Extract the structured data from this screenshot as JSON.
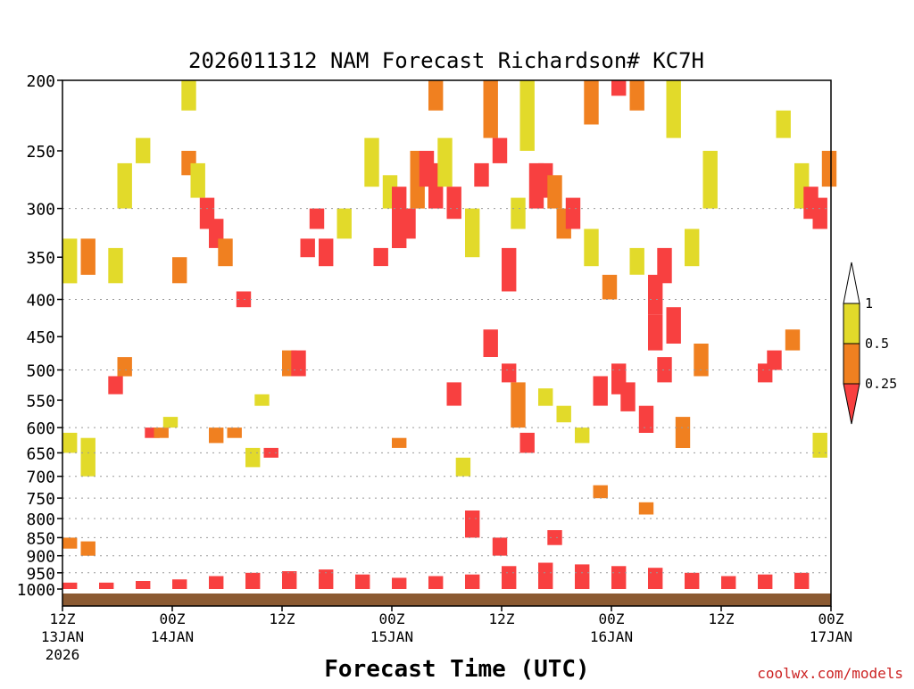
{
  "chart_data": {
    "type": "heatmap",
    "title": "2026011312 NAM Forecast Richardson# KC7H",
    "xlabel": "Forecast Time (UTC)",
    "ylabel": "",
    "credit": "coolwx.com/models",
    "x_range_hours": [
      0,
      84
    ],
    "y_range_hpa": [
      1000,
      200
    ],
    "x_ticks": [
      {
        "hour": 0,
        "time": "12Z",
        "date": "13JAN",
        "year": "2026"
      },
      {
        "hour": 12,
        "time": "00Z",
        "date": "14JAN",
        "year": ""
      },
      {
        "hour": 24,
        "time": "12Z",
        "date": "",
        "year": ""
      },
      {
        "hour": 36,
        "time": "00Z",
        "date": "15JAN",
        "year": ""
      },
      {
        "hour": 48,
        "time": "12Z",
        "date": "",
        "year": ""
      },
      {
        "hour": 60,
        "time": "00Z",
        "date": "16JAN",
        "year": ""
      },
      {
        "hour": 72,
        "time": "12Z",
        "date": "",
        "year": ""
      },
      {
        "hour": 84,
        "time": "00Z",
        "date": "17JAN",
        "year": ""
      }
    ],
    "y_ticks": [
      "200",
      "250",
      "300",
      "350",
      "400",
      "450",
      "500",
      "550",
      "600",
      "650",
      "700",
      "750",
      "800",
      "850",
      "900",
      "950",
      "1000"
    ],
    "gridlines_hpa": [
      300,
      400,
      500,
      600,
      650,
      700,
      750,
      800,
      850,
      900,
      950
    ],
    "legend": {
      "placement": "right",
      "labels": [
        "1",
        "0.5",
        "0.25"
      ],
      "bins": [
        {
          "range": "> 1",
          "color": "#ffffff"
        },
        {
          "range": "0.5 - 1",
          "color": "#e2da2a"
        },
        {
          "range": "0.25 - 0.5",
          "color": "#f08020"
        },
        {
          "range": "< 0.25",
          "color": "#f84040"
        }
      ]
    },
    "surface_color": "#8b5a32",
    "colors": {
      "low": "#f84040",
      "mid": "#f08020",
      "high": "#e2da2a"
    },
    "cells": [
      {
        "h": 0,
        "p": [
          1000,
          980
        ],
        "c": "low"
      },
      {
        "h": 4,
        "p": [
          1000,
          980
        ],
        "c": "low"
      },
      {
        "h": 8,
        "p": [
          1000,
          975
        ],
        "c": "low"
      },
      {
        "h": 12,
        "p": [
          1000,
          970
        ],
        "c": "low"
      },
      {
        "h": 16,
        "p": [
          1000,
          960
        ],
        "c": "low"
      },
      {
        "h": 20,
        "p": [
          1000,
          950
        ],
        "c": "low"
      },
      {
        "h": 24,
        "p": [
          1000,
          945
        ],
        "c": "low"
      },
      {
        "h": 28,
        "p": [
          1000,
          940
        ],
        "c": "low"
      },
      {
        "h": 32,
        "p": [
          1000,
          955
        ],
        "c": "low"
      },
      {
        "h": 36,
        "p": [
          1000,
          965
        ],
        "c": "low"
      },
      {
        "h": 40,
        "p": [
          1000,
          960
        ],
        "c": "low"
      },
      {
        "h": 44,
        "p": [
          1000,
          955
        ],
        "c": "low"
      },
      {
        "h": 48,
        "p": [
          1000,
          930
        ],
        "c": "low"
      },
      {
        "h": 52,
        "p": [
          1000,
          920
        ],
        "c": "low"
      },
      {
        "h": 56,
        "p": [
          1000,
          925
        ],
        "c": "low"
      },
      {
        "h": 60,
        "p": [
          1000,
          930
        ],
        "c": "low"
      },
      {
        "h": 64,
        "p": [
          1000,
          935
        ],
        "c": "low"
      },
      {
        "h": 68,
        "p": [
          1000,
          950
        ],
        "c": "low"
      },
      {
        "h": 72,
        "p": [
          1000,
          960
        ],
        "c": "low"
      },
      {
        "h": 76,
        "p": [
          1000,
          955
        ],
        "c": "low"
      },
      {
        "h": 80,
        "p": [
          1000,
          950
        ],
        "c": "low"
      },
      {
        "h": 0,
        "p": [
          880,
          850
        ],
        "c": "mid"
      },
      {
        "h": 2,
        "p": [
          900,
          860
        ],
        "c": "mid"
      },
      {
        "h": 0,
        "p": [
          650,
          610
        ],
        "c": "high"
      },
      {
        "h": 2,
        "p": [
          700,
          620
        ],
        "c": "high"
      },
      {
        "h": 0,
        "p": [
          380,
          330
        ],
        "c": "high"
      },
      {
        "h": 2,
        "p": [
          370,
          330
        ],
        "c": "mid"
      },
      {
        "h": 5,
        "p": [
          380,
          340
        ],
        "c": "high"
      },
      {
        "h": 5,
        "p": [
          540,
          510
        ],
        "c": "low"
      },
      {
        "h": 6,
        "p": [
          510,
          480
        ],
        "c": "mid"
      },
      {
        "h": 6,
        "p": [
          300,
          260
        ],
        "c": "high"
      },
      {
        "h": 8,
        "p": [
          260,
          240
        ],
        "c": "high"
      },
      {
        "h": 9,
        "p": [
          620,
          600
        ],
        "c": "low"
      },
      {
        "h": 10,
        "p": [
          620,
          600
        ],
        "c": "mid"
      },
      {
        "h": 11,
        "p": [
          600,
          580
        ],
        "c": "high"
      },
      {
        "h": 12,
        "p": [
          380,
          350
        ],
        "c": "mid"
      },
      {
        "h": 13,
        "p": [
          220,
          200
        ],
        "c": "high"
      },
      {
        "h": 13,
        "p": [
          270,
          250
        ],
        "c": "mid"
      },
      {
        "h": 14,
        "p": [
          290,
          260
        ],
        "c": "high"
      },
      {
        "h": 15,
        "p": [
          320,
          290
        ],
        "c": "low"
      },
      {
        "h": 16,
        "p": [
          340,
          310
        ],
        "c": "low"
      },
      {
        "h": 16,
        "p": [
          630,
          600
        ],
        "c": "mid"
      },
      {
        "h": 17,
        "p": [
          360,
          330
        ],
        "c": "mid"
      },
      {
        "h": 18,
        "p": [
          620,
          600
        ],
        "c": "mid"
      },
      {
        "h": 19,
        "p": [
          410,
          390
        ],
        "c": "low"
      },
      {
        "h": 20,
        "p": [
          680,
          640
        ],
        "c": "high"
      },
      {
        "h": 21,
        "p": [
          560,
          540
        ],
        "c": "high"
      },
      {
        "h": 22,
        "p": [
          660,
          640
        ],
        "c": "low"
      },
      {
        "h": 24,
        "p": [
          510,
          470
        ],
        "c": "mid"
      },
      {
        "h": 25,
        "p": [
          510,
          470
        ],
        "c": "low"
      },
      {
        "h": 26,
        "p": [
          350,
          330
        ],
        "c": "low"
      },
      {
        "h": 27,
        "p": [
          320,
          300
        ],
        "c": "low"
      },
      {
        "h": 28,
        "p": [
          360,
          330
        ],
        "c": "low"
      },
      {
        "h": 30,
        "p": [
          330,
          300
        ],
        "c": "high"
      },
      {
        "h": 33,
        "p": [
          280,
          240
        ],
        "c": "high"
      },
      {
        "h": 34,
        "p": [
          360,
          340
        ],
        "c": "low"
      },
      {
        "h": 35,
        "p": [
          300,
          270
        ],
        "c": "high"
      },
      {
        "h": 36,
        "p": [
          340,
          280
        ],
        "c": "low"
      },
      {
        "h": 36,
        "p": [
          640,
          620
        ],
        "c": "mid"
      },
      {
        "h": 37,
        "p": [
          330,
          300
        ],
        "c": "low"
      },
      {
        "h": 38,
        "p": [
          300,
          250
        ],
        "c": "mid"
      },
      {
        "h": 39,
        "p": [
          280,
          250
        ],
        "c": "low"
      },
      {
        "h": 40,
        "p": [
          300,
          260
        ],
        "c": "low"
      },
      {
        "h": 40,
        "p": [
          220,
          200
        ],
        "c": "mid"
      },
      {
        "h": 41,
        "p": [
          280,
          240
        ],
        "c": "high"
      },
      {
        "h": 42,
        "p": [
          310,
          280
        ],
        "c": "low"
      },
      {
        "h": 42,
        "p": [
          560,
          520
        ],
        "c": "low"
      },
      {
        "h": 43,
        "p": [
          700,
          660
        ],
        "c": "high"
      },
      {
        "h": 44,
        "p": [
          850,
          780
        ],
        "c": "low"
      },
      {
        "h": 44,
        "p": [
          350,
          300
        ],
        "c": "high"
      },
      {
        "h": 45,
        "p": [
          280,
          260
        ],
        "c": "low"
      },
      {
        "h": 46,
        "p": [
          240,
          200
        ],
        "c": "mid"
      },
      {
        "h": 46,
        "p": [
          480,
          440
        ],
        "c": "low"
      },
      {
        "h": 47,
        "p": [
          900,
          850
        ],
        "c": "low"
      },
      {
        "h": 47,
        "p": [
          260,
          240
        ],
        "c": "low"
      },
      {
        "h": 48,
        "p": [
          520,
          490
        ],
        "c": "low"
      },
      {
        "h": 48,
        "p": [
          390,
          340
        ],
        "c": "low"
      },
      {
        "h": 49,
        "p": [
          320,
          290
        ],
        "c": "high"
      },
      {
        "h": 49,
        "p": [
          600,
          520
        ],
        "c": "mid"
      },
      {
        "h": 50,
        "p": [
          250,
          200
        ],
        "c": "high"
      },
      {
        "h": 50,
        "p": [
          650,
          610
        ],
        "c": "low"
      },
      {
        "h": 51,
        "p": [
          300,
          260
        ],
        "c": "low"
      },
      {
        "h": 52,
        "p": [
          290,
          260
        ],
        "c": "low"
      },
      {
        "h": 52,
        "p": [
          560,
          530
        ],
        "c": "high"
      },
      {
        "h": 53,
        "p": [
          300,
          270
        ],
        "c": "mid"
      },
      {
        "h": 53,
        "p": [
          870,
          830
        ],
        "c": "low"
      },
      {
        "h": 54,
        "p": [
          330,
          300
        ],
        "c": "mid"
      },
      {
        "h": 54,
        "p": [
          590,
          560
        ],
        "c": "high"
      },
      {
        "h": 55,
        "p": [
          320,
          290
        ],
        "c": "low"
      },
      {
        "h": 56,
        "p": [
          630,
          600
        ],
        "c": "high"
      },
      {
        "h": 57,
        "p": [
          360,
          320
        ],
        "c": "high"
      },
      {
        "h": 57,
        "p": [
          230,
          200
        ],
        "c": "mid"
      },
      {
        "h": 58,
        "p": [
          560,
          510
        ],
        "c": "low"
      },
      {
        "h": 58,
        "p": [
          750,
          720
        ],
        "c": "mid"
      },
      {
        "h": 59,
        "p": [
          400,
          370
        ],
        "c": "mid"
      },
      {
        "h": 60,
        "p": [
          540,
          490
        ],
        "c": "low"
      },
      {
        "h": 60,
        "p": [
          210,
          200
        ],
        "c": "low"
      },
      {
        "h": 61,
        "p": [
          570,
          520
        ],
        "c": "low"
      },
      {
        "h": 62,
        "p": [
          370,
          340
        ],
        "c": "high"
      },
      {
        "h": 62,
        "p": [
          220,
          200
        ],
        "c": "mid"
      },
      {
        "h": 63,
        "p": [
          610,
          560
        ],
        "c": "low"
      },
      {
        "h": 63,
        "p": [
          790,
          760
        ],
        "c": "mid"
      },
      {
        "h": 64,
        "p": [
          470,
          420
        ],
        "c": "low"
      },
      {
        "h": 64,
        "p": [
          420,
          370
        ],
        "c": "low"
      },
      {
        "h": 65,
        "p": [
          520,
          480
        ],
        "c": "low"
      },
      {
        "h": 65,
        "p": [
          380,
          340
        ],
        "c": "low"
      },
      {
        "h": 66,
        "p": [
          460,
          410
        ],
        "c": "low"
      },
      {
        "h": 66,
        "p": [
          240,
          200
        ],
        "c": "high"
      },
      {
        "h": 67,
        "p": [
          640,
          580
        ],
        "c": "mid"
      },
      {
        "h": 68,
        "p": [
          360,
          320
        ],
        "c": "high"
      },
      {
        "h": 69,
        "p": [
          510,
          460
        ],
        "c": "mid"
      },
      {
        "h": 70,
        "p": [
          300,
          250
        ],
        "c": "high"
      },
      {
        "h": 76,
        "p": [
          520,
          490
        ],
        "c": "low"
      },
      {
        "h": 77,
        "p": [
          500,
          470
        ],
        "c": "low"
      },
      {
        "h": 78,
        "p": [
          240,
          220
        ],
        "c": "high"
      },
      {
        "h": 79,
        "p": [
          470,
          440
        ],
        "c": "mid"
      },
      {
        "h": 80,
        "p": [
          300,
          260
        ],
        "c": "high"
      },
      {
        "h": 81,
        "p": [
          310,
          280
        ],
        "c": "low"
      },
      {
        "h": 82,
        "p": [
          320,
          290
        ],
        "c": "low"
      },
      {
        "h": 82,
        "p": [
          660,
          610
        ],
        "c": "high"
      },
      {
        "h": 83,
        "p": [
          280,
          250
        ],
        "c": "mid"
      }
    ]
  }
}
